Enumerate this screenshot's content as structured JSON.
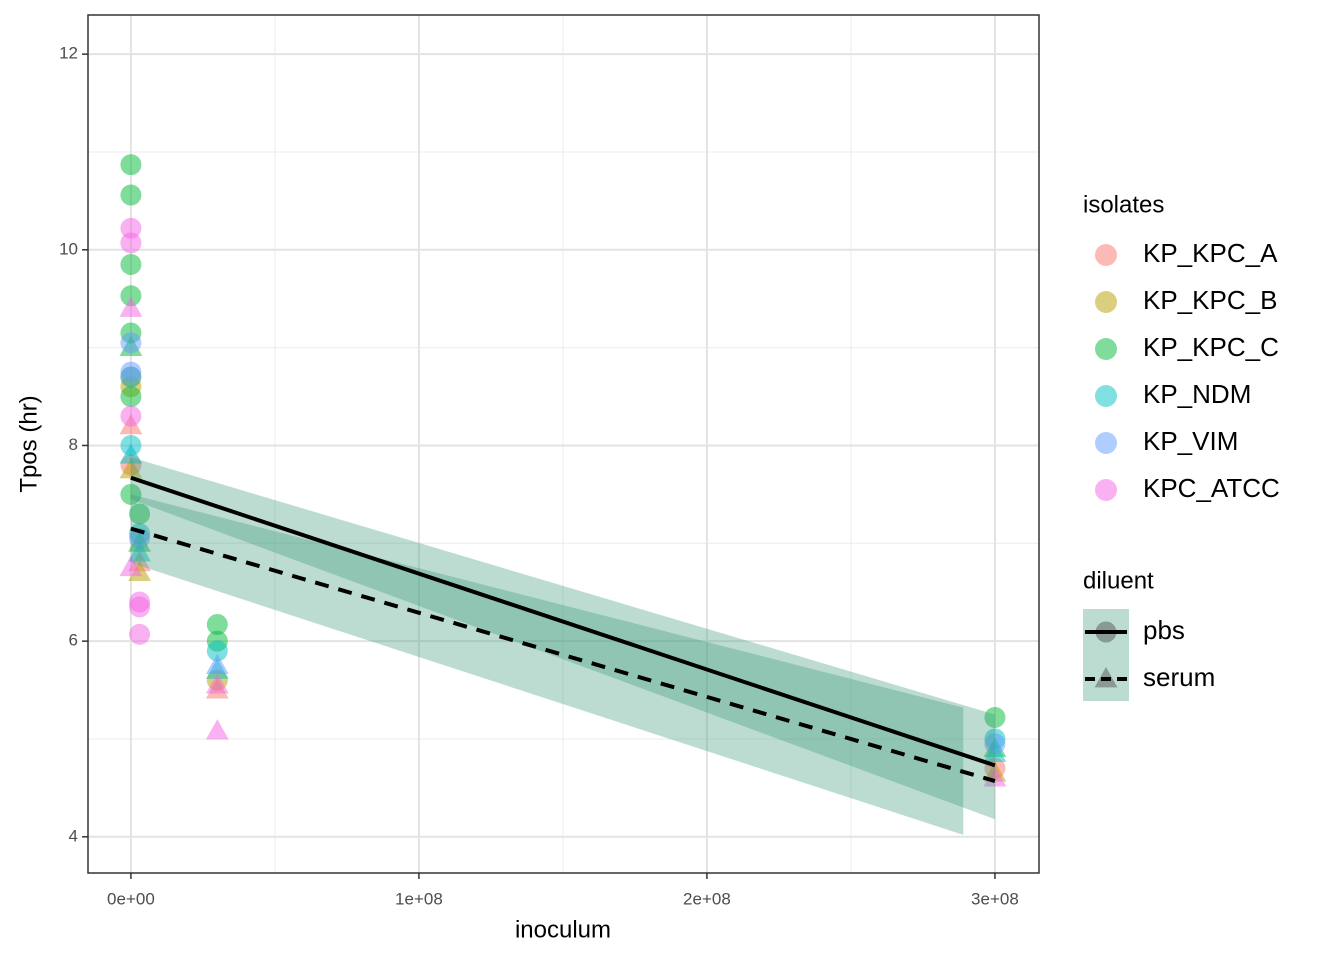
{
  "chart_data": {
    "type": "scatter",
    "x_label": "inoculum",
    "y_label": "Tpos (hr)",
    "xlim": [
      -14900000,
      315300000
    ],
    "ylim": [
      3.63,
      12.4
    ],
    "xticks": [
      {
        "value": 0,
        "label": "0e+00"
      },
      {
        "value": 100000000,
        "label": "1e+08"
      },
      {
        "value": 200000000,
        "label": "2e+08"
      },
      {
        "value": 300000000,
        "label": "3e+08"
      }
    ],
    "yticks": [
      4,
      6,
      8,
      10,
      12
    ],
    "minor_xticks": [
      50000000,
      150000000,
      250000000
    ],
    "minor_yticks": [
      5,
      7,
      9,
      11
    ],
    "grid": true,
    "legend_title": "isolates",
    "series": [
      {
        "name": "KP_KPC_A",
        "color": "#F8766D",
        "x": [
          0,
          0,
          0,
          3000000,
          30000000,
          300000000
        ],
        "values": [
          8.7,
          8.2,
          7.8,
          6.8,
          5.5,
          4.7
        ],
        "diluent": [
          "pbs",
          "serum",
          "pbs",
          "serum",
          "serum",
          "pbs"
        ]
      },
      {
        "name": "KP_KPC_B",
        "color": "#B79F00",
        "x": [
          0,
          0,
          3000000,
          30000000,
          300000000
        ],
        "values": [
          8.6,
          7.75,
          6.7,
          5.6,
          4.65
        ],
        "diluent": [
          "pbs",
          "serum",
          "serum",
          "pbs",
          "serum"
        ]
      },
      {
        "name": "KP_KPC_C",
        "color": "#00BA38",
        "x": [
          0,
          0,
          0,
          0,
          0,
          0,
          0,
          0,
          3000000,
          3000000,
          30000000,
          30000000,
          300000000,
          300000000
        ],
        "values": [
          10.87,
          10.56,
          9.85,
          9.53,
          9.15,
          8.5,
          7.5,
          9.0,
          7.3,
          7.0,
          6.17,
          6.0,
          5.22,
          4.9
        ],
        "diluent": [
          "pbs",
          "pbs",
          "pbs",
          "pbs",
          "pbs",
          "pbs",
          "pbs",
          "serum",
          "pbs",
          "serum",
          "pbs",
          "pbs",
          "pbs",
          "serum"
        ]
      },
      {
        "name": "KP_NDM",
        "color": "#00BFC4",
        "x": [
          0,
          0,
          0,
          3000000,
          3000000,
          30000000,
          30000000,
          300000000,
          300000000
        ],
        "values": [
          8.7,
          8.0,
          7.9,
          7.1,
          6.9,
          5.9,
          5.7,
          5.0,
          4.85
        ],
        "diluent": [
          "pbs",
          "pbs",
          "serum",
          "pbs",
          "serum",
          "pbs",
          "serum",
          "pbs",
          "serum"
        ]
      },
      {
        "name": "KP_VIM",
        "color": "#619CFF",
        "x": [
          0,
          0,
          3000000,
          30000000,
          300000000
        ],
        "values": [
          9.05,
          8.75,
          7.05,
          5.75,
          4.95
        ],
        "diluent": [
          "pbs",
          "pbs",
          "pbs",
          "serum",
          "pbs"
        ]
      },
      {
        "name": "KPC_ATCC",
        "color": "#F564E3",
        "x": [
          0,
          0,
          0,
          0,
          0,
          3000000,
          3000000,
          3000000,
          30000000,
          30000000,
          300000000
        ],
        "values": [
          10.22,
          10.07,
          9.4,
          8.3,
          6.75,
          6.07,
          6.35,
          6.4,
          5.08,
          5.55,
          4.6
        ],
        "diluent": [
          "pbs",
          "pbs",
          "serum",
          "pbs",
          "serum",
          "pbs",
          "pbs",
          "pbs",
          "serum",
          "serum",
          "serum"
        ]
      }
    ],
    "diluent_legend": {
      "title": "diluent",
      "levels": [
        "pbs",
        "serum"
      ]
    },
    "fits": [
      {
        "name": "pbs",
        "color": "#000000",
        "dash": false,
        "x": [
          0,
          300000000
        ],
        "values": [
          7.67,
          4.73
        ],
        "ribbon_x": [
          0,
          300000000
        ],
        "lower": [
          7.45,
          4.18
        ],
        "upper": [
          7.88,
          5.25
        ],
        "ribbon_color": "#3f9a7a"
      },
      {
        "name": "serum",
        "color": "#000000",
        "dash": true,
        "x": [
          0,
          300000000
        ],
        "values": [
          7.15,
          4.57
        ],
        "ribbon_x": [
          0,
          289000000
        ],
        "lower": [
          6.8,
          4.02
        ],
        "upper": [
          7.5,
          5.32
        ],
        "ribbon_color": "#3f9a7a"
      }
    ]
  }
}
